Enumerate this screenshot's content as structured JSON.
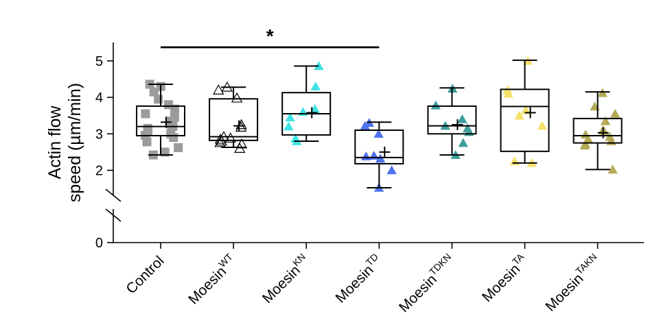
{
  "chart_data": {
    "type": "box",
    "title": "",
    "xlabel": "",
    "ylabel": [
      "Actin flow",
      "speed (µm/min)"
    ],
    "ylim": [
      0,
      5.5
    ],
    "axis_break": [
      0.5,
      1.6
    ],
    "yticks": [
      0,
      2,
      3,
      4,
      5
    ],
    "grid": false,
    "legend": "none",
    "significance": {
      "from": "Control",
      "to": "MoesinTD",
      "label": "*"
    },
    "groups": [
      {
        "key": "Control",
        "name": "Control",
        "sup": "",
        "color": "#9b9b9b",
        "marker": "square",
        "filled": true,
        "box": {
          "whisker_low": 2.42,
          "q1": 2.95,
          "median": 3.2,
          "q3": 3.76,
          "whisker_high": 4.36
        },
        "mean": 3.32,
        "points": [
          2.42,
          2.5,
          2.62,
          2.78,
          2.9,
          2.96,
          3.0,
          3.08,
          3.15,
          3.2,
          3.22,
          3.28,
          3.35,
          3.45,
          3.55,
          3.68,
          3.8,
          3.95,
          4.15,
          4.3,
          4.36
        ]
      },
      {
        "key": "MoesinWT",
        "name": "Moesin",
        "sup": "WT",
        "color": "#000000",
        "marker": "triangle",
        "filled": false,
        "box": {
          "whisker_low": 2.63,
          "q1": 2.82,
          "median": 2.92,
          "q3": 3.96,
          "whisker_high": 4.28
        },
        "mean": 3.22,
        "points": [
          2.6,
          2.72,
          2.76,
          2.8,
          2.85,
          2.88,
          2.92,
          3.18,
          3.25,
          3.98,
          4.2,
          4.28
        ]
      },
      {
        "key": "MoesinKN",
        "name": "Moesin",
        "sup": "KN",
        "color": "#3fe3e3",
        "marker": "triangle",
        "filled": true,
        "box": {
          "whisker_low": 2.8,
          "q1": 2.97,
          "median": 3.55,
          "q3": 4.13,
          "whisker_high": 4.86
        },
        "mean": 3.58,
        "points": [
          2.8,
          2.87,
          3.2,
          3.45,
          3.6,
          3.68,
          4.3,
          4.86
        ]
      },
      {
        "key": "MoesinTD",
        "name": "Moesin",
        "sup": "TD",
        "color": "#4f73ee",
        "marker": "triangle",
        "filled": true,
        "box": {
          "whisker_low": 1.52,
          "q1": 2.18,
          "median": 2.35,
          "q3": 3.1,
          "whisker_high": 3.32
        },
        "mean": 2.5,
        "points": [
          1.52,
          2.0,
          2.32,
          2.38,
          2.4,
          3.0,
          3.22,
          3.3
        ]
      },
      {
        "key": "MoesinTDKN",
        "name": "Moesin",
        "sup": "TDKN",
        "color": "#3f9e9e",
        "marker": "triangle",
        "filled": true,
        "box": {
          "whisker_low": 2.42,
          "q1": 3.0,
          "median": 3.22,
          "q3": 3.76,
          "whisker_high": 4.26
        },
        "mean": 3.25,
        "points": [
          2.42,
          2.75,
          3.05,
          3.15,
          3.22,
          3.4,
          3.78,
          4.24
        ]
      },
      {
        "key": "MoesinTA",
        "name": "Moesin",
        "sup": "TA",
        "color": "#f4e26a",
        "marker": "triangle",
        "filled": true,
        "box": {
          "whisker_low": 2.2,
          "q1": 2.52,
          "median": 3.75,
          "q3": 4.22,
          "whisker_high": 5.02
        },
        "mean": 3.58,
        "points": [
          2.2,
          2.25,
          3.22,
          3.5,
          3.65,
          4.1,
          4.2,
          5.0
        ]
      },
      {
        "key": "MoesinTAKN",
        "name": "Moesin",
        "sup": "TAKN",
        "color": "#b5aa55",
        "marker": "triangle",
        "filled": true,
        "box": {
          "whisker_low": 2.02,
          "q1": 2.75,
          "median": 2.95,
          "q3": 3.42,
          "whisker_high": 4.15
        },
        "mean": 3.03,
        "points": [
          2.02,
          2.68,
          2.72,
          2.8,
          2.85,
          2.92,
          2.98,
          3.05,
          3.1,
          3.35,
          3.55,
          3.75,
          4.12
        ]
      }
    ]
  }
}
